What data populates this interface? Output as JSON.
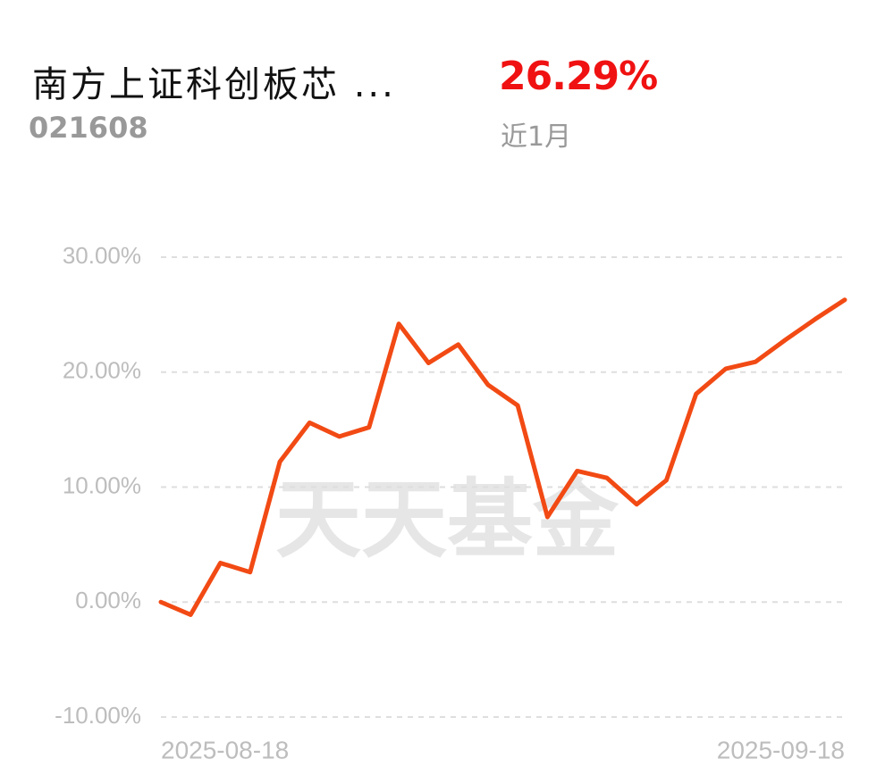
{
  "header": {
    "title": "南方上证科创板芯 ...",
    "code": "021608",
    "return": "26.29%",
    "period": "近1月"
  },
  "chart_data": {
    "type": "line",
    "watermark": "天天基金",
    "categories": [
      "2025-08-18",
      null,
      null,
      null,
      null,
      null,
      null,
      null,
      null,
      null,
      null,
      null,
      null,
      null,
      null,
      null,
      null,
      null,
      null,
      null,
      null,
      null,
      null,
      "2025-09-18"
    ],
    "values": [
      0.0,
      -1.1,
      3.4,
      2.6,
      12.2,
      15.6,
      14.4,
      15.2,
      24.2,
      20.8,
      22.4,
      18.9,
      17.1,
      7.4,
      11.4,
      10.8,
      8.5,
      10.6,
      18.1,
      20.3,
      20.9,
      22.8,
      24.6,
      26.29
    ],
    "color": "#f24a14",
    "ylim": [
      -10,
      30
    ],
    "yticks": [
      {
        "value": -10,
        "label": "-10.00%"
      },
      {
        "value": 0,
        "label": "0.00%"
      },
      {
        "value": 10,
        "label": "10.00%"
      },
      {
        "value": 20,
        "label": "20.00%"
      },
      {
        "value": 30,
        "label": "30.00%"
      }
    ],
    "grid": true
  }
}
